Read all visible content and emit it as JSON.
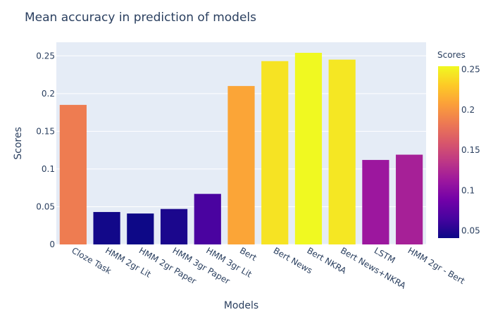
{
  "chart_data": {
    "type": "bar",
    "title": "Mean accuracy in prediction of models",
    "xlabel": "Models",
    "ylabel": "Scores",
    "categories": [
      "Cloze Task",
      "HMM 2gr Lit",
      "HMM 2gr Paper",
      "HMM 3gr Paper",
      "HMM 3gr Lit",
      "Bert",
      "Bert News",
      "Bert NKRA",
      "Bert News+NKRA",
      "LSTM",
      "HMM 2gr - Bert"
    ],
    "values": [
      0.185,
      0.043,
      0.041,
      0.047,
      0.067,
      0.21,
      0.243,
      0.254,
      0.245,
      0.112,
      0.119
    ],
    "ylim": [
      0,
      0.268
    ],
    "yticks": [
      0,
      0.05,
      0.1,
      0.15,
      0.2,
      0.25
    ],
    "ytick_labels": [
      "0",
      "0.05",
      "0.1",
      "0.15",
      "0.2",
      "0.25"
    ],
    "grid": true,
    "colorbar": {
      "title": "Scores",
      "range": [
        0.041,
        0.254
      ],
      "ticks": [
        0.05,
        0.1,
        0.15,
        0.2,
        0.25
      ],
      "tick_labels": [
        "0.05",
        "0.1",
        "0.15",
        "0.2",
        "0.25"
      ],
      "colorscale": [
        "#0d0887",
        "#46039f",
        "#7201a8",
        "#9c179e",
        "#bd3786",
        "#d8576b",
        "#ed7953",
        "#fb9f3a",
        "#fdca26",
        "#f0f921"
      ]
    },
    "colors": {
      "plot_bg": "#e5ecf6",
      "grid": "#ffffff",
      "text": "#2a3f5f"
    }
  }
}
